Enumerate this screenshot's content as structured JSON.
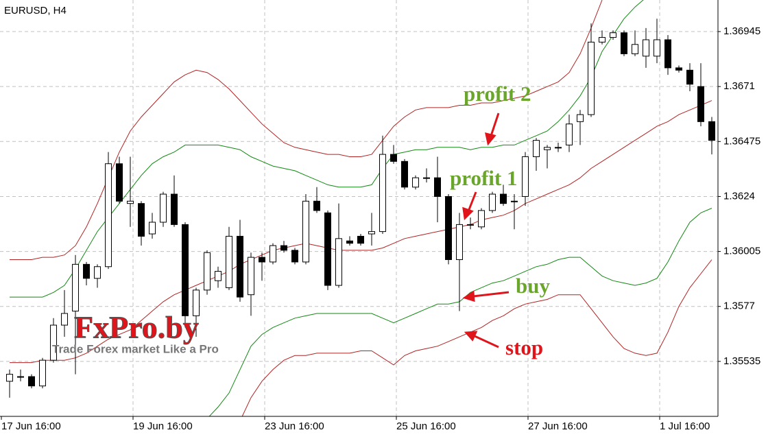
{
  "chart_data": {
    "type": "candlestick",
    "title": "EURUSD, H4",
    "categories": [
      "17 Jun 16:00",
      null,
      null,
      null,
      null,
      null,
      null,
      null,
      null,
      null,
      null,
      null,
      "19 Jun 16:00",
      null,
      null,
      null,
      null,
      null,
      null,
      null,
      null,
      null,
      null,
      null,
      "23 Jun 16:00",
      null,
      null,
      null,
      null,
      null,
      null,
      null,
      null,
      null,
      null,
      null,
      "25 Jun 16:00",
      null,
      null,
      null,
      null,
      null,
      null,
      null,
      null,
      null,
      null,
      null,
      "27 Jun 16:00",
      null,
      null,
      null,
      null,
      null,
      null,
      null,
      null,
      null,
      null,
      null,
      "1 Jul 16:00",
      null,
      null,
      null,
      null
    ],
    "open": [
      1.3545,
      1.3547,
      1.3547,
      1.3543,
      1.3554,
      1.3569,
      1.3575,
      1.3595,
      1.3589,
      1.3594,
      1.3638,
      1.3621,
      1.3621,
      1.3608,
      1.3613,
      1.3625,
      1.3612,
      1.3573,
      1.3584,
      1.3588,
      1.3585,
      1.3607,
      1.3582,
      1.3598,
      1.3596,
      1.3603,
      1.3601,
      1.3596,
      1.3622,
      1.3617,
      1.3586,
      1.3605,
      1.3607,
      1.3608,
      1.3609,
      1.3642,
      1.3639,
      1.3628,
      1.3632,
      1.3632,
      1.3624,
      1.3597,
      1.3612,
      1.3611,
      1.3618,
      1.3625,
      1.3622,
      1.3624,
      1.3641,
      1.3644,
      1.3645,
      1.3646,
      1.3656,
      1.3659,
      1.369,
      1.3692,
      1.3694,
      1.3685,
      1.3684,
      1.3684,
      1.3691,
      1.3679,
      1.3678,
      1.3671,
      1.3656
    ],
    "high": [
      1.355,
      1.355,
      1.3548,
      1.3555,
      1.3572,
      1.3584,
      1.3599,
      1.3596,
      1.3595,
      1.3643,
      1.3641,
      1.3641,
      1.3622,
      1.3617,
      1.3626,
      1.3633,
      1.3613,
      1.3585,
      1.3601,
      1.3594,
      1.3611,
      1.3614,
      1.36,
      1.36,
      1.3604,
      1.3605,
      1.3602,
      1.3625,
      1.3628,
      1.3618,
      1.3621,
      1.3607,
      1.3608,
      1.3617,
      1.365,
      1.3646,
      1.364,
      1.3633,
      1.3636,
      1.3641,
      1.3625,
      1.3617,
      1.3615,
      1.3619,
      1.3626,
      1.3629,
      1.3625,
      1.3643,
      1.3649,
      1.3646,
      1.3647,
      1.3659,
      1.3661,
      1.3698,
      1.3695,
      1.3695,
      1.3695,
      1.3695,
      1.3696,
      1.37,
      1.3693,
      1.368,
      1.3681,
      1.3681,
      1.3658
    ],
    "low": [
      1.3538,
      1.3545,
      1.3542,
      1.3542,
      1.3553,
      1.3564,
      1.3548,
      1.3586,
      1.3585,
      1.3593,
      1.3621,
      1.3611,
      1.3603,
      1.3606,
      1.3611,
      1.3611,
      1.3568,
      1.3564,
      1.3582,
      1.3585,
      1.3584,
      1.3579,
      1.3573,
      1.3588,
      1.3595,
      1.36,
      1.3595,
      1.3595,
      1.3617,
      1.3584,
      1.3585,
      1.3603,
      1.3603,
      1.3603,
      1.3608,
      1.3638,
      1.3627,
      1.3627,
      1.363,
      1.3613,
      1.3595,
      1.3575,
      1.361,
      1.361,
      1.3617,
      1.362,
      1.361,
      1.362,
      1.3635,
      1.3636,
      1.3643,
      1.3643,
      1.3646,
      1.3658,
      1.3689,
      1.3691,
      1.3684,
      1.3684,
      1.3679,
      1.3681,
      1.3676,
      1.3677,
      1.3669,
      1.3654,
      1.3642
    ],
    "close": [
      1.3548,
      1.3547,
      1.3543,
      1.3554,
      1.3569,
      1.3574,
      1.3595,
      1.3589,
      1.3594,
      1.3638,
      1.3622,
      1.3622,
      1.3607,
      1.3613,
      1.3625,
      1.3612,
      1.3573,
      1.3584,
      1.36,
      1.3592,
      1.3607,
      1.3581,
      1.3598,
      1.3596,
      1.3603,
      1.3601,
      1.3596,
      1.3622,
      1.3618,
      1.3586,
      1.3606,
      1.3604,
      1.3604,
      1.3609,
      1.3642,
      1.3639,
      1.3628,
      1.3632,
      1.3632,
      1.3624,
      1.3597,
      1.3612,
      1.3612,
      1.3618,
      1.3625,
      1.3621,
      1.3622,
      1.3641,
      1.3648,
      1.3645,
      1.3645,
      1.3655,
      1.3659,
      1.369,
      1.3692,
      1.3694,
      1.3685,
      1.3689,
      1.3691,
      1.3691,
      1.3679,
      1.3678,
      1.3672,
      1.3656,
      1.3648
    ],
    "up_color": "#ffffff",
    "down_color": "#000000",
    "bands": [
      {
        "color": "#b22222",
        "values": [
          1.3553,
          1.3553,
          1.3553,
          1.3554,
          1.3554,
          1.3554,
          1.3555,
          1.3557,
          1.356,
          1.3563,
          1.3565,
          1.3567,
          1.3571,
          1.3575,
          1.3579,
          1.3582,
          1.3584,
          1.3586,
          1.3588,
          1.359,
          1.3592,
          1.3595,
          1.3597,
          1.3599,
          1.3601,
          1.3602,
          1.3603,
          1.3604,
          1.3603,
          1.3602,
          1.3601,
          1.3601,
          1.3601,
          1.3601,
          1.3602,
          1.3604,
          1.3606,
          1.3607,
          1.3608,
          1.3609,
          1.361,
          1.3611,
          1.3612,
          1.3614,
          1.3615,
          1.3616,
          1.3618,
          1.3621,
          1.3623,
          1.3625,
          1.3627,
          1.3629,
          1.3632,
          1.3636,
          1.3639,
          1.3642,
          1.3645,
          1.3648,
          1.3651,
          1.3654,
          1.3656,
          1.3659,
          1.3661,
          1.3663,
          1.3665
        ]
      },
      {
        "color": "#118811",
        "values": [
          1.3581,
          1.3581,
          1.3581,
          1.3581,
          1.3583,
          1.3586,
          1.3593,
          1.3601,
          1.3609,
          1.3615,
          1.3621,
          1.3627,
          1.3633,
          1.3638,
          1.3641,
          1.3643,
          1.3646,
          1.3646,
          1.3646,
          1.3646,
          1.3645,
          1.3644,
          1.3641,
          1.3639,
          1.3637,
          1.3636,
          1.3635,
          1.3633,
          1.3631,
          1.3629,
          1.3628,
          1.3628,
          1.3628,
          1.3629,
          1.3636,
          1.3642,
          1.3643,
          1.3644,
          1.3644,
          1.3645,
          1.3645,
          1.3645,
          1.3644,
          1.3645,
          1.3645,
          1.3646,
          1.3646,
          1.3648,
          1.365,
          1.3652,
          1.3656,
          1.3661,
          1.3667,
          1.3675,
          1.3686,
          1.3693,
          1.37,
          1.3705,
          1.3709,
          null,
          null,
          null,
          null,
          null,
          null
        ]
      },
      {
        "color": "#b22222",
        "values": [
          1.3597,
          1.3597,
          1.3597,
          1.3598,
          1.3598,
          1.3599,
          1.3603,
          1.3611,
          1.3621,
          1.3632,
          1.3643,
          1.3652,
          1.3658,
          1.3663,
          1.3668,
          1.3673,
          1.3676,
          1.3678,
          1.3677,
          1.3674,
          1.367,
          1.3665,
          1.366,
          1.3655,
          1.3651,
          1.3647,
          1.3645,
          1.3644,
          1.3643,
          1.3642,
          1.3642,
          1.3641,
          1.3641,
          1.3642,
          1.3648,
          1.3654,
          1.3658,
          1.3661,
          1.3662,
          1.3662,
          1.3662,
          1.3663,
          1.3663,
          1.3664,
          1.3664,
          1.3665,
          1.3666,
          1.3667,
          1.3669,
          1.3671,
          1.3673,
          1.3677,
          1.3685,
          1.3696,
          1.3708,
          null,
          null,
          null,
          null,
          null,
          null,
          null,
          null,
          null,
          null
        ]
      },
      {
        "color": "#118811",
        "values": [
          null,
          null,
          null,
          null,
          null,
          null,
          null,
          null,
          null,
          null,
          null,
          null,
          null,
          null,
          null,
          null,
          null,
          null,
          1.3529,
          1.3534,
          1.354,
          1.355,
          1.356,
          1.3565,
          1.3568,
          1.357,
          1.3572,
          1.3573,
          1.3574,
          1.3574,
          1.3574,
          1.3574,
          1.3574,
          1.3574,
          1.3572,
          1.357,
          1.3572,
          1.3574,
          1.3576,
          1.3578,
          1.3578,
          1.3579,
          1.3583,
          1.3585,
          1.3587,
          1.3588,
          1.359,
          1.3592,
          1.3594,
          1.3595,
          1.3597,
          1.3598,
          1.3598,
          1.3594,
          1.359,
          1.3588,
          1.3587,
          1.3586,
          1.3587,
          1.3589,
          1.3596,
          1.3605,
          1.3613,
          1.3617,
          1.3619
        ]
      },
      {
        "color": "#b22222",
        "values": [
          null,
          null,
          null,
          null,
          null,
          null,
          null,
          null,
          null,
          null,
          null,
          null,
          null,
          null,
          null,
          null,
          null,
          null,
          null,
          null,
          null,
          1.3528,
          1.3538,
          1.3545,
          1.355,
          1.3554,
          1.3556,
          1.3556,
          1.3557,
          1.3557,
          1.3557,
          1.3557,
          1.3558,
          1.3558,
          1.3555,
          1.3552,
          1.3556,
          1.3558,
          1.3559,
          1.356,
          1.3562,
          1.3564,
          1.3566,
          1.3568,
          1.3571,
          1.3573,
          1.3576,
          1.3578,
          1.3579,
          1.358,
          1.3582,
          1.3582,
          1.3582,
          1.3576,
          1.357,
          1.3564,
          1.3559,
          1.3557,
          1.3556,
          1.3557,
          1.3566,
          1.3577,
          1.3585,
          1.3591,
          1.3597
        ]
      }
    ],
    "ylim": [
      1.353,
      1.3708
    ],
    "yticks": [
      1.35535,
      1.3577,
      1.36005,
      1.3624,
      1.36475,
      1.3671,
      1.36945
    ],
    "grid": true,
    "annotations": [
      "profit 2",
      "profit 1",
      "buy",
      "stop"
    ]
  },
  "watermark": {
    "title": "FxPro.by",
    "subtitle": "Trade Forex market Like a Pro"
  }
}
